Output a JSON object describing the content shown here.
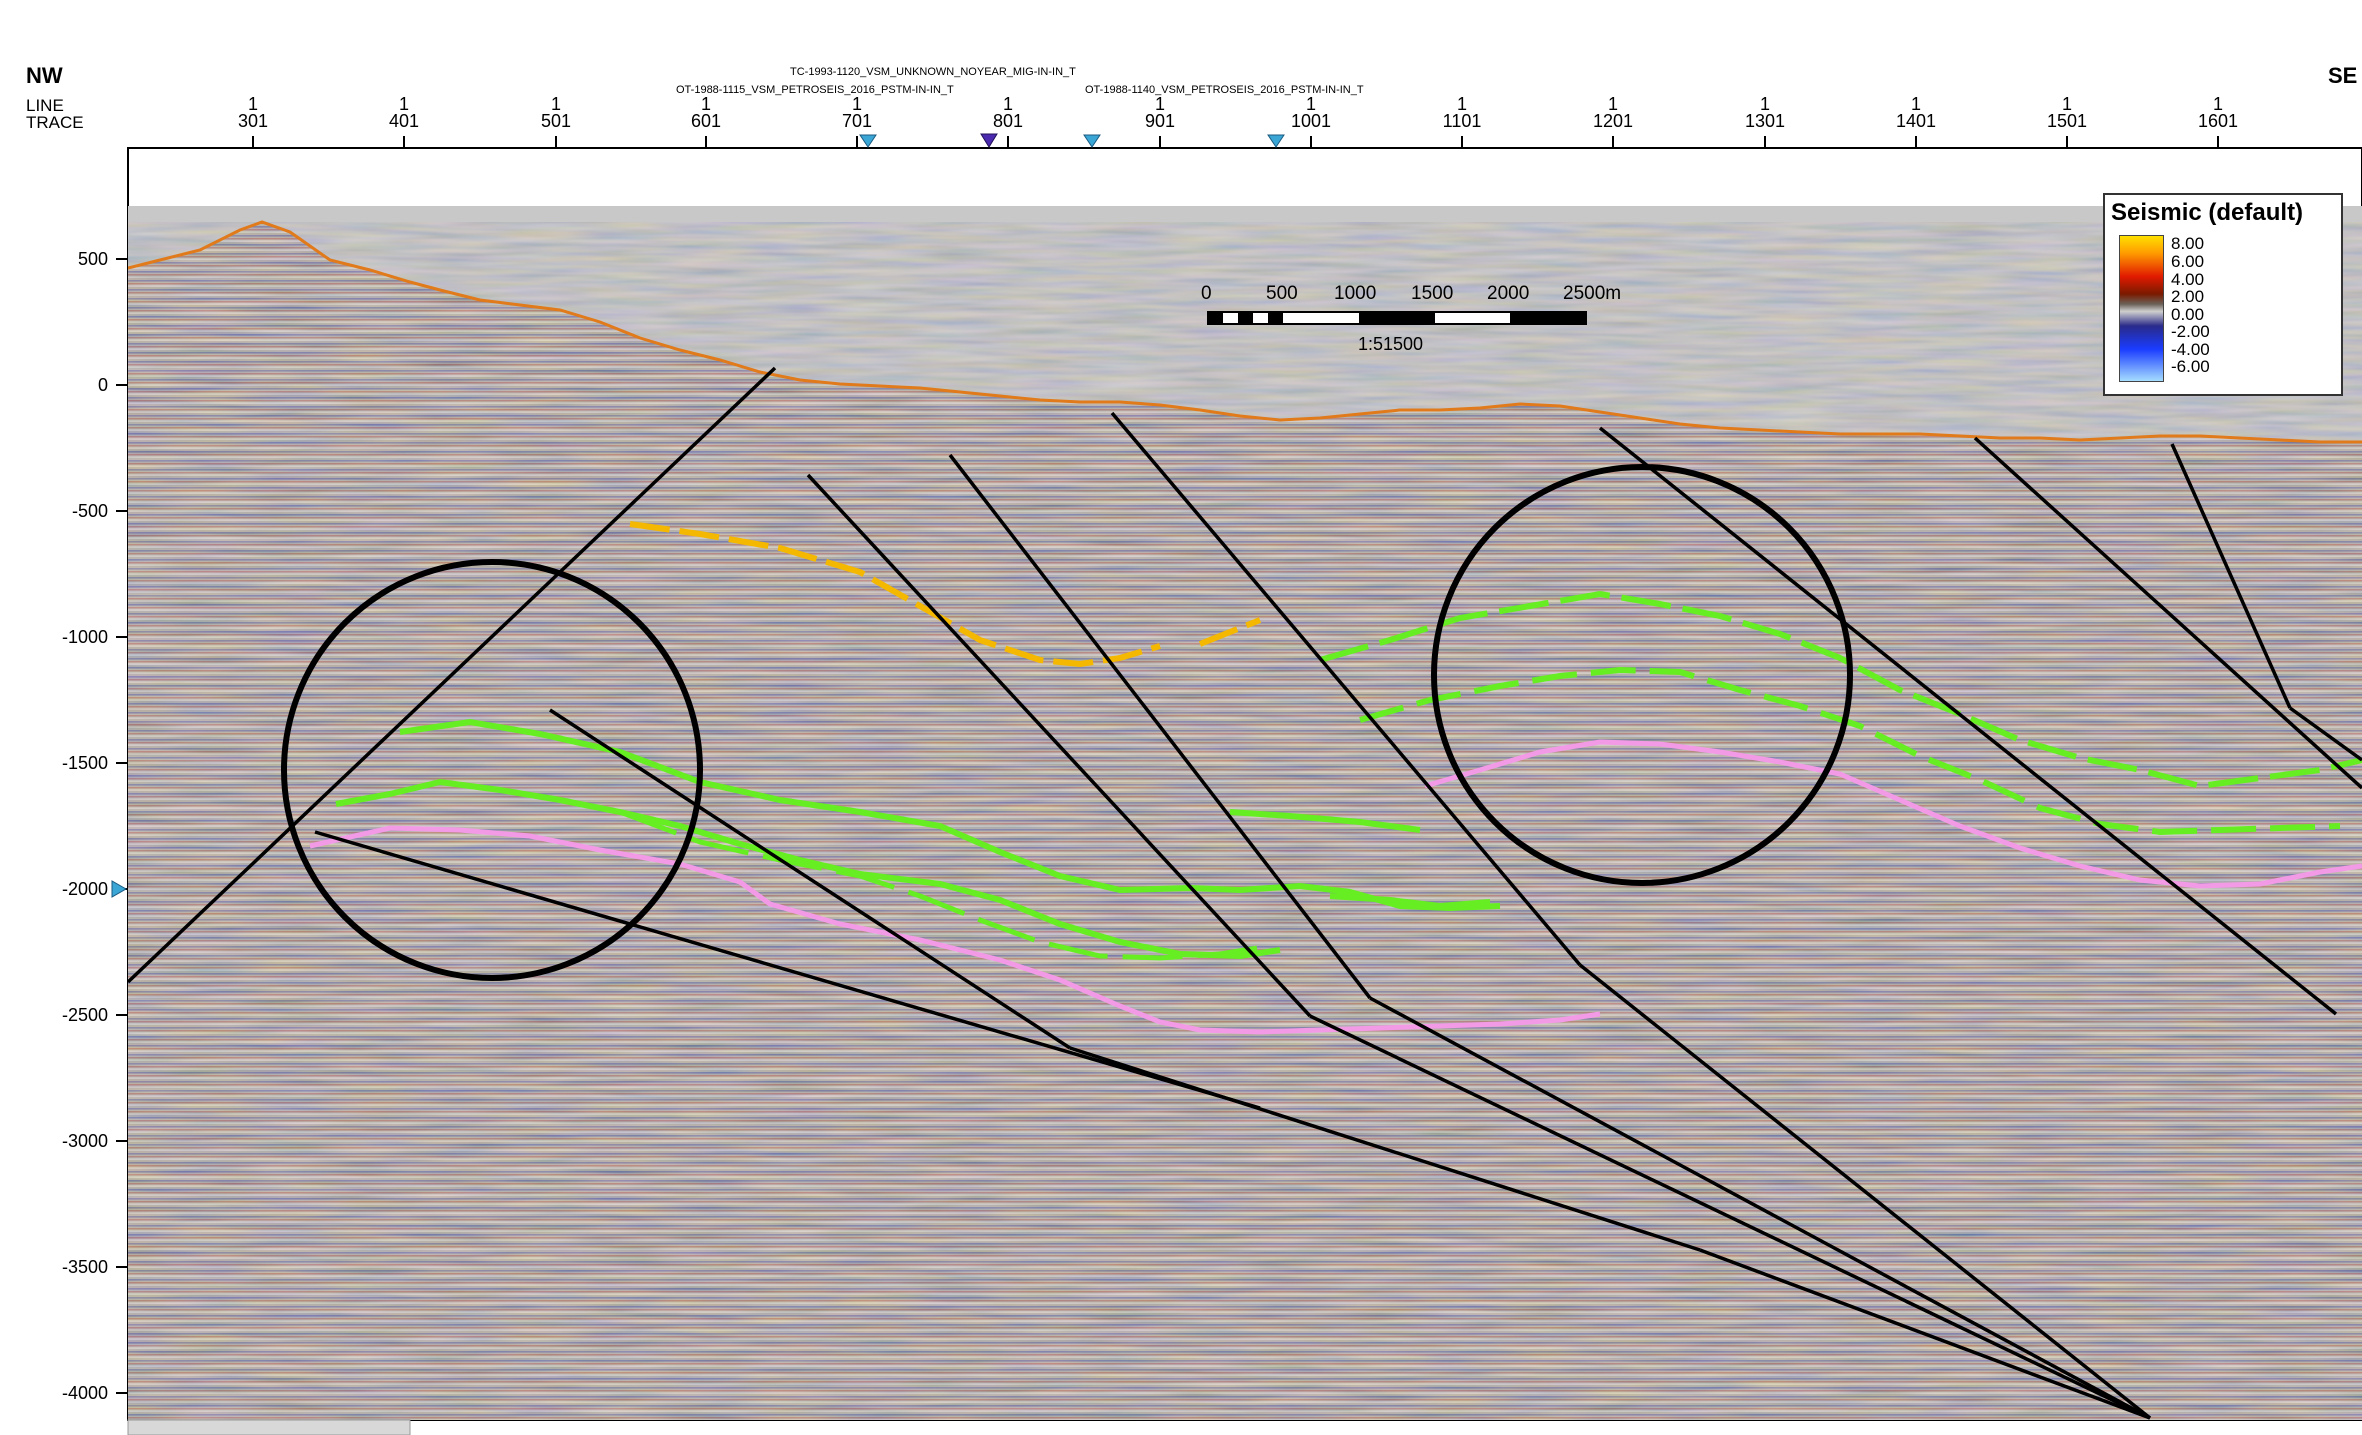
{
  "header": {
    "left_direction": "NW",
    "right_direction": "SE",
    "line_label": "LINE",
    "trace_label": "TRACE",
    "line_names": [
      "TC-1993-1120_VSM_UNKNOWN_NOYEAR_MIG-IN-IN_T",
      "OT-1988-1115_VSM_PETROSEIS_2016_PSTM-IN-IN_T",
      "OT-1988-1140_VSM_PETROSEIS_2016_PSTM-IN-IN_T"
    ],
    "trace_line_number": "1",
    "traces": [
      "301",
      "401",
      "501",
      "601",
      "701",
      "801",
      "901",
      "1001",
      "1101",
      "1201",
      "1301",
      "1401",
      "1501",
      "1601"
    ]
  },
  "y_axis": {
    "ticks": [
      "500",
      "0",
      "-500",
      "-1000",
      "-1500",
      "-2000",
      "-2500",
      "-3000",
      "-3500",
      "-4000"
    ]
  },
  "scale_bar": {
    "labels": [
      "0",
      "500",
      "1000",
      "1500",
      "2000",
      "2500m"
    ],
    "ratio": "1:51500"
  },
  "legend": {
    "title": "Seismic (default)",
    "values": [
      "8.00",
      "6.00",
      "4.00",
      "2.00",
      "0.00",
      "-2.00",
      "-4.00",
      "-6.00"
    ]
  },
  "colors": {
    "horizon_yellow": "#f5b800",
    "horizon_green": "#66ee22",
    "horizon_pink": "#f29ae6",
    "faults": "#000000",
    "topography": "#e07a1a",
    "background_above_surface": "#c8c8c8"
  }
}
